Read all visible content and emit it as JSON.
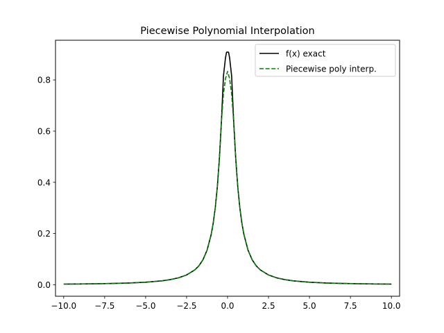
{
  "chart_data": {
    "type": "line",
    "title": "Piecewise Polynomial Interpolation",
    "xlabel": "",
    "ylabel": "",
    "xlim": [
      -10.5,
      10.5
    ],
    "ylim": [
      -0.045,
      0.955
    ],
    "xticks": [
      -10.0,
      -7.5,
      -5.0,
      -2.5,
      0.0,
      2.5,
      5.0,
      7.5,
      10.0
    ],
    "xtick_labels": [
      "−10.0",
      "−7.5",
      "−5.0",
      "−2.5",
      "0.0",
      "2.5",
      "5.0",
      "7.5",
      "10.0"
    ],
    "yticks": [
      0.0,
      0.2,
      0.4,
      0.6,
      0.8
    ],
    "ytick_labels": [
      "0.0",
      "0.2",
      "0.4",
      "0.6",
      "0.8"
    ],
    "grid": false,
    "legend_position": "top-right",
    "series": [
      {
        "name": "f(x) exact",
        "color": "#000000",
        "style": "solid",
        "x": [
          -10,
          -9,
          -8,
          -7,
          -6,
          -5,
          -4,
          -3.5,
          -3,
          -2.5,
          -2,
          -1.75,
          -1.5,
          -1.25,
          -1,
          -0.875,
          -0.75,
          -0.625,
          -0.5,
          -0.375,
          -0.25,
          -0.125,
          -0.06,
          0.06,
          0.125,
          0.25,
          0.375,
          0.5,
          0.625,
          0.75,
          0.875,
          1,
          1.25,
          1.5,
          1.75,
          2,
          2.5,
          3,
          3.5,
          4,
          5,
          6,
          7,
          8,
          9,
          10
        ],
        "y": [
          0.0024,
          0.003,
          0.0038,
          0.005,
          0.0068,
          0.0098,
          0.0152,
          0.0198,
          0.0268,
          0.0381,
          0.0577,
          0.0736,
          0.0976,
          0.1349,
          0.1958,
          0.2402,
          0.3003,
          0.3812,
          0.4914,
          0.6361,
          0.8152,
          0.8871,
          0.9084,
          0.9084,
          0.8871,
          0.8152,
          0.6361,
          0.4914,
          0.3812,
          0.3003,
          0.2402,
          0.1958,
          0.1349,
          0.0976,
          0.0736,
          0.0577,
          0.0381,
          0.0268,
          0.0198,
          0.0152,
          0.0098,
          0.0068,
          0.005,
          0.0038,
          0.003,
          0.0024
        ]
      },
      {
        "name": "Piecewise poly interp.",
        "color": "#008000",
        "style": "dashed",
        "x": [
          -10,
          -9,
          -8,
          -7,
          -6,
          -5,
          -4,
          -3.5,
          -3,
          -2.5,
          -2,
          -1.75,
          -1.5,
          -1.25,
          -1,
          -0.875,
          -0.75,
          -0.625,
          -0.5,
          -0.375,
          -0.25,
          -0.125,
          0,
          0.125,
          0.25,
          0.375,
          0.5,
          0.625,
          0.75,
          0.875,
          1,
          1.25,
          1.5,
          1.75,
          2,
          2.5,
          3,
          3.5,
          4,
          5,
          6,
          7,
          8,
          9,
          10
        ],
        "y": [
          0.0024,
          0.003,
          0.0038,
          0.005,
          0.0068,
          0.0098,
          0.0152,
          0.0198,
          0.0268,
          0.0381,
          0.0577,
          0.0736,
          0.0976,
          0.1349,
          0.1958,
          0.2402,
          0.3003,
          0.3812,
          0.4914,
          0.6361,
          0.7452,
          0.805,
          0.833,
          0.805,
          0.7452,
          0.6361,
          0.4914,
          0.3812,
          0.3003,
          0.2402,
          0.1958,
          0.1349,
          0.0976,
          0.0736,
          0.0577,
          0.0381,
          0.0268,
          0.0198,
          0.0152,
          0.0098,
          0.0068,
          0.005,
          0.0038,
          0.003,
          0.0024
        ]
      }
    ]
  }
}
